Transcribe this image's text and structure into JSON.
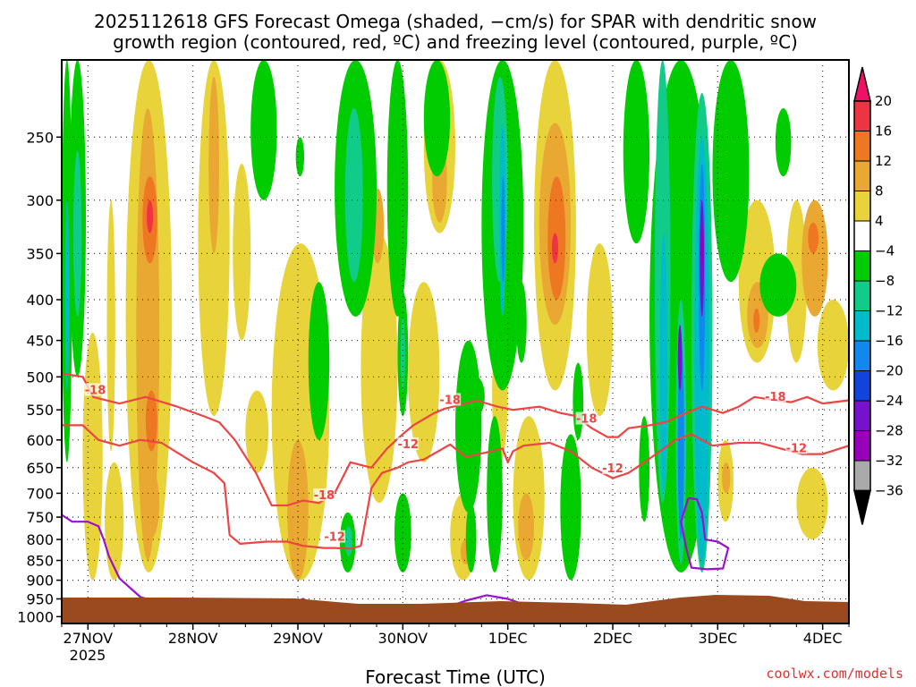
{
  "title_line1": "2025112618 GFS Forecast Omega (shaded, −cm/s) for SPAR with dendritic snow",
  "title_line2": "growth region (contoured, red, ºC) and freezing level (contoured, purple, ºC)",
  "credit": "coolwx.com/models",
  "chart_data": {
    "type": "heatmap",
    "xlabel": "Forecast Time (UTC)",
    "ylabel": "",
    "x_ticks": [
      "27NOV",
      "28NOV",
      "29NOV",
      "30NOV",
      "1DEC",
      "2DEC",
      "3DEC",
      "4DEC"
    ],
    "x_year_label": "2025",
    "x_range_days": [
      -0.25,
      7.25
    ],
    "y_ticks": [
      250,
      300,
      350,
      400,
      450,
      500,
      550,
      600,
      650,
      700,
      750,
      800,
      850,
      900,
      950,
      1000
    ],
    "y_scale": "log",
    "y_range_hpa": [
      200,
      1020
    ],
    "grid": true,
    "colorbar": {
      "labels": [
        "20",
        "16",
        "12",
        "8",
        "4",
        "−4",
        "−8",
        "−12",
        "−16",
        "−20",
        "−24",
        "−28",
        "−32",
        "−36"
      ],
      "bins": [
        {
          "color": "#ee1167",
          "range": "> 20"
        },
        {
          "color": "#ee3344",
          "range": "16 to 20"
        },
        {
          "color": "#ee7722",
          "range": "12 to 16"
        },
        {
          "color": "#e8a832",
          "range": "8 to 12"
        },
        {
          "color": "#e8d33a",
          "range": "4 to 8"
        },
        {
          "color": "#ffffff",
          "range": "-4 to 4"
        },
        {
          "color": "#00cc00",
          "range": "-8 to -4"
        },
        {
          "color": "#11cc88",
          "range": "-12 to -8"
        },
        {
          "color": "#00bbcc",
          "range": "-16 to -12"
        },
        {
          "color": "#1188ee",
          "range": "-20 to -16"
        },
        {
          "color": "#1144dd",
          "range": "-24 to -20"
        },
        {
          "color": "#7711cc",
          "range": "-28 to -24"
        },
        {
          "color": "#9900bb",
          "range": "-32 to -28"
        },
        {
          "color": "#aaaaaa",
          "range": "-36 to -32"
        },
        {
          "color": "#000000",
          "range": "< -36"
        }
      ]
    },
    "contours": {
      "dgz_color": "#ee4444",
      "freezing_color": "#9911cc",
      "labels": [
        "-18",
        "-12"
      ],
      "m18_line": [
        [
          -0.25,
          495
        ],
        [
          -0.05,
          500
        ],
        [
          0.05,
          530
        ],
        [
          0.3,
          540
        ],
        [
          0.55,
          530
        ],
        [
          0.85,
          545
        ],
        [
          1.1,
          560
        ],
        [
          1.25,
          570
        ],
        [
          1.4,
          600
        ],
        [
          1.6,
          660
        ],
        [
          1.75,
          725
        ],
        [
          1.9,
          725
        ],
        [
          2.05,
          715
        ],
        [
          2.2,
          720
        ],
        [
          2.35,
          700
        ],
        [
          2.5,
          640
        ],
        [
          2.7,
          650
        ],
        [
          2.85,
          615
        ],
        [
          3.0,
          590
        ],
        [
          3.1,
          575
        ],
        [
          3.3,
          555
        ],
        [
          3.4,
          548
        ],
        [
          3.6,
          540
        ],
        [
          3.7,
          535
        ],
        [
          3.9,
          545
        ],
        [
          4.05,
          550
        ],
        [
          4.3,
          545
        ],
        [
          4.5,
          555
        ],
        [
          4.65,
          560
        ],
        [
          4.8,
          580
        ],
        [
          4.95,
          595
        ],
        [
          5.05,
          595
        ],
        [
          5.15,
          580
        ],
        [
          5.35,
          575
        ],
        [
          5.5,
          570
        ],
        [
          5.7,
          555
        ],
        [
          5.85,
          545
        ],
        [
          6.05,
          555
        ],
        [
          6.2,
          545
        ],
        [
          6.35,
          530
        ],
        [
          6.55,
          535
        ],
        [
          6.7,
          538
        ],
        [
          6.85,
          530
        ],
        [
          7.0,
          540
        ],
        [
          7.25,
          535
        ]
      ],
      "m12_line": [
        [
          -0.25,
          575
        ],
        [
          -0.05,
          575
        ],
        [
          0.1,
          600
        ],
        [
          0.3,
          610
        ],
        [
          0.5,
          600
        ],
        [
          0.7,
          605
        ],
        [
          1.0,
          640
        ],
        [
          1.2,
          660
        ],
        [
          1.3,
          680
        ],
        [
          1.35,
          790
        ],
        [
          1.45,
          810
        ],
        [
          1.7,
          805
        ],
        [
          1.9,
          805
        ],
        [
          2.05,
          815
        ],
        [
          2.25,
          820
        ],
        [
          2.35,
          820
        ],
        [
          2.5,
          822
        ],
        [
          2.6,
          815
        ],
        [
          2.7,
          690
        ],
        [
          2.8,
          660
        ],
        [
          2.95,
          650
        ],
        [
          3.05,
          640
        ],
        [
          3.2,
          635
        ],
        [
          3.45,
          608
        ],
        [
          3.6,
          630
        ],
        [
          3.8,
          622
        ],
        [
          3.95,
          615
        ],
        [
          4.0,
          640
        ],
        [
          4.05,
          620
        ],
        [
          4.15,
          610
        ],
        [
          4.4,
          605
        ],
        [
          4.6,
          620
        ],
        [
          4.8,
          650
        ],
        [
          5.0,
          670
        ],
        [
          5.15,
          660
        ],
        [
          5.3,
          640
        ],
        [
          5.45,
          620
        ],
        [
          5.6,
          600
        ],
        [
          5.75,
          590
        ],
        [
          5.95,
          610
        ],
        [
          6.2,
          605
        ],
        [
          6.4,
          605
        ],
        [
          6.6,
          615
        ],
        [
          6.8,
          625
        ],
        [
          7.0,
          625
        ],
        [
          7.25,
          610
        ]
      ],
      "fz_line_1": [
        [
          -0.25,
          745
        ],
        [
          -0.15,
          760
        ],
        [
          0.0,
          760
        ],
        [
          0.1,
          770
        ],
        [
          0.15,
          800
        ],
        [
          0.2,
          840
        ],
        [
          0.3,
          895
        ],
        [
          0.5,
          945
        ],
        [
          0.75,
          965
        ],
        [
          0.95,
          955
        ],
        [
          1.1,
          960
        ],
        [
          1.25,
          975
        ]
      ],
      "fz_line_2": [
        [
          1.85,
          970
        ],
        [
          2.05,
          950
        ],
        [
          2.2,
          975
        ],
        [
          2.35,
          970
        ],
        [
          2.45,
          990
        ]
      ],
      "fz_line_3": [
        [
          3.4,
          975
        ],
        [
          3.6,
          955
        ],
        [
          3.8,
          940
        ],
        [
          4.0,
          950
        ],
        [
          4.15,
          965
        ],
        [
          4.3,
          975
        ],
        [
          4.5,
          970
        ],
        [
          4.65,
          968
        ],
        [
          4.8,
          985
        ]
      ],
      "fz_line_4": [
        [
          5.72,
          710
        ],
        [
          5.8,
          712
        ],
        [
          5.85,
          740
        ],
        [
          5.88,
          800
        ],
        [
          6.0,
          805
        ],
        [
          6.1,
          820
        ],
        [
          6.05,
          870
        ],
        [
          5.9,
          872
        ],
        [
          5.75,
          868
        ],
        [
          5.7,
          820
        ],
        [
          5.65,
          760
        ],
        [
          5.72,
          710
        ]
      ]
    }
  }
}
